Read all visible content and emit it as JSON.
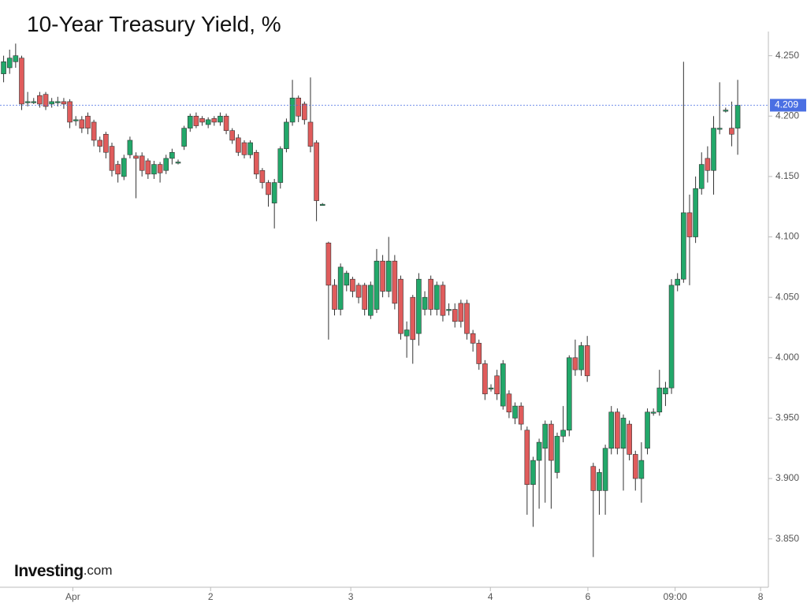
{
  "chart_data": {
    "type": "candlestick",
    "title": "10-Year Treasury Yield, %",
    "brand": "Investing",
    "brand_suffix": ".com",
    "up_color": "#22a86a",
    "down_color": "#e05c5c",
    "open": [
      4.235,
      4.24,
      4.245,
      4.248,
      4.212,
      4.212,
      4.217,
      4.218,
      4.21,
      4.212,
      4.212,
      4.212,
      4.197,
      4.197,
      4.2,
      4.195,
      4.18,
      4.185,
      4.175,
      4.16,
      4.15,
      4.168,
      4.167,
      4.167,
      4.163,
      4.152,
      4.16,
      4.155,
      4.165,
      4.162,
      4.175,
      4.19,
      4.2,
      4.198,
      4.193,
      4.198,
      4.195,
      4.2,
      4.188,
      4.182,
      4.178,
      4.168,
      4.17,
      4.155,
      4.145,
      4.128,
      4.145,
      4.173,
      4.195,
      4.215,
      4.21,
      4.195,
      4.178,
      4.127,
      4.095,
      4.06,
      4.04,
      4.06,
      4.065,
      4.06,
      4.06,
      4.035,
      4.04,
      4.08,
      4.055,
      4.08,
      4.065,
      4.018,
      4.05,
      4.02,
      4.04,
      4.065,
      4.04,
      4.06,
      4.04,
      4.04,
      4.045,
      4.045,
      4.02,
      4.012,
      3.995,
      3.975,
      3.985,
      3.96,
      3.97,
      3.95,
      3.96,
      3.94,
      3.895,
      3.915,
      3.925,
      3.945,
      3.905,
      3.935,
      3.94,
      4.0,
      3.99,
      4.01,
      3.91,
      3.89,
      3.89,
      3.925,
      3.955,
      3.925,
      3.945,
      3.92,
      3.9,
      3.925,
      3.955,
      3.955,
      3.97,
      3.975,
      4.06,
      4.065,
      4.12,
      4.1,
      4.14,
      4.165,
      4.155,
      4.19,
      4.205,
      4.19,
      4.19
    ],
    "high": [
      4.25,
      4.255,
      4.26,
      4.25,
      4.22,
      4.215,
      4.22,
      4.22,
      4.215,
      4.216,
      4.215,
      4.214,
      4.2,
      4.2,
      4.203,
      4.197,
      4.183,
      4.187,
      4.178,
      4.163,
      4.168,
      4.183,
      4.17,
      4.17,
      4.165,
      4.163,
      4.162,
      4.168,
      4.173,
      4.164,
      4.192,
      4.202,
      4.203,
      4.2,
      4.199,
      4.2,
      4.203,
      4.202,
      4.19,
      4.185,
      4.18,
      4.18,
      4.172,
      4.157,
      4.147,
      4.148,
      4.175,
      4.198,
      4.23,
      4.217,
      4.212,
      4.232,
      4.18,
      4.128,
      4.096,
      4.065,
      4.078,
      4.072,
      4.067,
      4.062,
      4.062,
      4.063,
      4.09,
      4.085,
      4.1,
      4.085,
      4.068,
      4.03,
      4.052,
      4.07,
      4.055,
      4.068,
      4.063,
      4.063,
      4.045,
      4.045,
      4.048,
      4.048,
      4.023,
      4.015,
      3.998,
      3.978,
      3.99,
      3.998,
      3.973,
      3.963,
      3.963,
      3.943,
      3.918,
      3.933,
      3.948,
      3.948,
      3.938,
      3.96,
      4.002,
      4.015,
      4.013,
      4.018,
      3.913,
      3.908,
      3.928,
      3.96,
      3.958,
      3.953,
      3.948,
      3.923,
      3.93,
      3.958,
      3.958,
      3.99,
      3.98,
      4.065,
      4.07,
      4.245,
      4.135,
      4.15,
      4.17,
      4.175,
      4.2,
      4.228,
      4.207,
      4.212,
      4.23
    ],
    "low": [
      4.228,
      4.235,
      4.24,
      4.205,
      4.208,
      4.21,
      4.207,
      4.205,
      4.207,
      4.208,
      4.206,
      4.19,
      4.192,
      4.186,
      4.185,
      4.175,
      4.17,
      4.165,
      4.15,
      4.145,
      4.147,
      4.165,
      4.132,
      4.15,
      4.148,
      4.148,
      4.145,
      4.152,
      4.16,
      4.16,
      4.172,
      4.187,
      4.19,
      4.192,
      4.19,
      4.192,
      4.192,
      4.185,
      4.177,
      4.167,
      4.165,
      4.165,
      4.148,
      4.14,
      4.125,
      4.107,
      4.14,
      4.17,
      4.192,
      4.195,
      4.193,
      4.17,
      4.113,
      4.126,
      4.015,
      4.035,
      4.035,
      4.055,
      4.05,
      4.045,
      4.035,
      4.032,
      4.037,
      4.05,
      4.05,
      4.04,
      4.015,
      4.0,
      3.995,
      4.01,
      4.035,
      4.035,
      4.035,
      4.03,
      4.035,
      4.025,
      4.025,
      4.015,
      4.005,
      3.99,
      3.965,
      3.972,
      3.965,
      3.957,
      3.95,
      3.945,
      3.94,
      3.87,
      3.86,
      3.875,
      3.88,
      3.875,
      3.9,
      3.93,
      3.935,
      3.985,
      3.985,
      3.98,
      3.835,
      3.87,
      3.87,
      3.92,
      3.92,
      3.89,
      3.915,
      3.89,
      3.88,
      3.92,
      3.952,
      3.952,
      3.96,
      3.97,
      4.055,
      4.062,
      4.06,
      4.095,
      4.135,
      4.145,
      4.135,
      4.185,
      4.203,
      4.175,
      4.168
    ],
    "close": [
      4.245,
      4.248,
      4.25,
      4.21,
      4.212,
      4.212,
      4.21,
      4.208,
      4.212,
      4.212,
      4.21,
      4.195,
      4.197,
      4.19,
      4.19,
      4.18,
      4.175,
      4.17,
      4.155,
      4.152,
      4.165,
      4.18,
      4.165,
      4.155,
      4.152,
      4.16,
      4.153,
      4.165,
      4.17,
      4.162,
      4.19,
      4.2,
      4.192,
      4.195,
      4.197,
      4.195,
      4.2,
      4.188,
      4.18,
      4.17,
      4.168,
      4.178,
      4.152,
      4.145,
      4.135,
      4.145,
      4.173,
      4.195,
      4.215,
      4.2,
      4.197,
      4.175,
      4.13,
      4.127,
      4.06,
      4.04,
      4.075,
      4.07,
      4.055,
      4.05,
      4.04,
      4.06,
      4.08,
      4.055,
      4.08,
      4.045,
      4.02,
      4.023,
      4.015,
      4.065,
      4.05,
      4.04,
      4.06,
      4.035,
      4.04,
      4.03,
      4.03,
      4.02,
      4.012,
      3.995,
      3.97,
      3.975,
      3.97,
      3.995,
      3.955,
      3.96,
      3.945,
      3.895,
      3.915,
      3.93,
      3.945,
      3.915,
      3.935,
      3.94,
      4.0,
      3.99,
      4.01,
      3.985,
      3.89,
      3.905,
      3.925,
      3.955,
      3.925,
      3.95,
      3.92,
      3.9,
      3.915,
      3.955,
      3.955,
      3.975,
      3.975,
      4.06,
      4.065,
      4.12,
      4.1,
      4.14,
      4.16,
      4.155,
      4.19,
      4.19,
      4.205,
      4.185,
      4.209
    ],
    "last_value": 4.209,
    "last_color": "#4a6fe3",
    "ylim": [
      3.81,
      4.27
    ],
    "yticks": [
      {
        "value": 3.85,
        "label": "3.850"
      },
      {
        "value": 3.9,
        "label": "3.900"
      },
      {
        "value": 3.95,
        "label": "3.950"
      },
      {
        "value": 4.0,
        "label": "4.000"
      },
      {
        "value": 4.05,
        "label": "4.050"
      },
      {
        "value": 4.1,
        "label": "4.100"
      },
      {
        "value": 4.15,
        "label": "4.150"
      },
      {
        "value": 4.2,
        "label": "4.200"
      },
      {
        "value": 4.25,
        "label": "4.250"
      }
    ],
    "xlim": [
      -0.6,
      127.1
    ],
    "xticks": [
      {
        "value": 11.5,
        "label": "Apr"
      },
      {
        "value": 34.4,
        "label": "2"
      },
      {
        "value": 57.7,
        "label": "3"
      },
      {
        "value": 80.9,
        "label": "4"
      },
      {
        "value": 97.1,
        "label": "6"
      },
      {
        "value": 111.6,
        "label": "09:00"
      },
      {
        "value": 125.8,
        "label": "8"
      }
    ]
  }
}
